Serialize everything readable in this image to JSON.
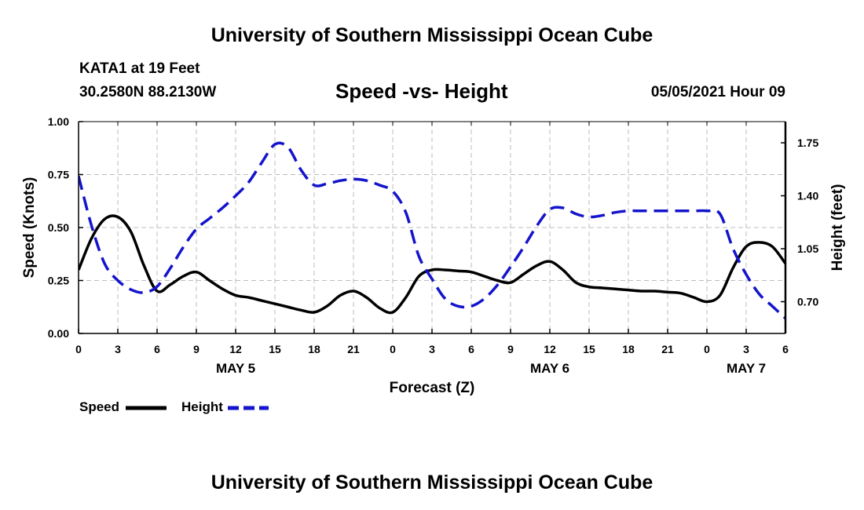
{
  "header": {
    "title": "University of Southern Mississippi Ocean Cube",
    "station": "KATA1 at 19 Feet",
    "coords": "30.2580N  88.2130W",
    "chart_title": "Speed -vs- Height",
    "timestamp": "05/05/2021 Hour 09"
  },
  "footer": {
    "title": "University of Southern Mississippi Ocean Cube"
  },
  "legend": {
    "speed_label": "Speed",
    "height_label": "Height"
  },
  "colors": {
    "speed": "#000000",
    "height": "#1414cc",
    "grid": "#bdbdbd"
  },
  "chart_data": {
    "type": "line",
    "title": "Speed -vs- Height",
    "xlabel": "Forecast (Z)",
    "ylabel": "Speed (Knots)",
    "y2label": "Height (feet)",
    "xlim": [
      0,
      54
    ],
    "ylim": [
      0,
      1.0
    ],
    "y2lim": [
      0.49,
      1.89
    ],
    "x_ticks": [
      0,
      3,
      6,
      9,
      12,
      15,
      18,
      21,
      24,
      27,
      30,
      33,
      36,
      39,
      42,
      45,
      48,
      51,
      54
    ],
    "x_tick_labels": [
      "0",
      "3",
      "6",
      "9",
      "12",
      "15",
      "18",
      "21",
      "0",
      "3",
      "6",
      "9",
      "12",
      "15",
      "18",
      "21",
      "0",
      "3",
      "6"
    ],
    "date_labels": [
      {
        "x": 12,
        "label": "MAY 5"
      },
      {
        "x": 36,
        "label": "MAY 6"
      },
      {
        "x": 51,
        "label": "MAY 7"
      }
    ],
    "y_ticks": [
      0,
      0.25,
      0.5,
      0.75,
      1.0
    ],
    "y_tick_labels": [
      "0.00",
      "0.25",
      "0.50",
      "0.75",
      "1.00"
    ],
    "y2_ticks": [
      0.7,
      1.05,
      1.4,
      1.75
    ],
    "y2_tick_labels": [
      "0.70",
      "1.05",
      "1.40",
      "1.75"
    ],
    "grid": true,
    "legend_position": "bottom-left",
    "series": [
      {
        "name": "Speed",
        "axis": "left",
        "style": "solid",
        "x": [
          0,
          1,
          2,
          3,
          4,
          5,
          6,
          7,
          8,
          9,
          10,
          11,
          12,
          13,
          14,
          15,
          16,
          17,
          18,
          19,
          20,
          21,
          22,
          23,
          24,
          25,
          26,
          27,
          28,
          29,
          30,
          31,
          32,
          33,
          34,
          35,
          36,
          37,
          38,
          39,
          40,
          41,
          42,
          43,
          44,
          45,
          46,
          47,
          48,
          49,
          50,
          51,
          52,
          53,
          54
        ],
        "values": [
          0.3,
          0.45,
          0.54,
          0.55,
          0.48,
          0.32,
          0.2,
          0.23,
          0.27,
          0.29,
          0.25,
          0.21,
          0.18,
          0.17,
          0.155,
          0.14,
          0.125,
          0.11,
          0.1,
          0.13,
          0.18,
          0.2,
          0.17,
          0.12,
          0.1,
          0.17,
          0.27,
          0.3,
          0.3,
          0.295,
          0.29,
          0.27,
          0.25,
          0.24,
          0.28,
          0.32,
          0.34,
          0.3,
          0.24,
          0.22,
          0.215,
          0.21,
          0.205,
          0.2,
          0.2,
          0.195,
          0.19,
          0.17,
          0.15,
          0.18,
          0.31,
          0.41,
          0.43,
          0.41,
          0.33
        ]
      },
      {
        "name": "Height",
        "axis": "right",
        "style": "dashed",
        "x": [
          0,
          1,
          2,
          3,
          4,
          5,
          6,
          7,
          8,
          9,
          10,
          11,
          12,
          13,
          14,
          15,
          16,
          17,
          18,
          19,
          20,
          21,
          22,
          23,
          24,
          25,
          26,
          27,
          28,
          29,
          30,
          31,
          32,
          33,
          34,
          35,
          36,
          37,
          38,
          39,
          40,
          41,
          42,
          43,
          44,
          45,
          46,
          47,
          48,
          49,
          50,
          51,
          52,
          53,
          54
        ],
        "values": [
          1.53,
          1.2,
          0.95,
          0.84,
          0.78,
          0.76,
          0.8,
          0.92,
          1.06,
          1.18,
          1.25,
          1.32,
          1.4,
          1.49,
          1.62,
          1.74,
          1.72,
          1.57,
          1.47,
          1.48,
          1.5,
          1.51,
          1.5,
          1.47,
          1.43,
          1.29,
          1.0,
          0.85,
          0.72,
          0.67,
          0.67,
          0.72,
          0.81,
          0.93,
          1.06,
          1.2,
          1.31,
          1.32,
          1.28,
          1.26,
          1.27,
          1.29,
          1.3,
          1.3,
          1.3,
          1.3,
          1.3,
          1.3,
          1.3,
          1.28,
          1.05,
          0.88,
          0.75,
          0.67,
          0.59
        ]
      }
    ]
  }
}
